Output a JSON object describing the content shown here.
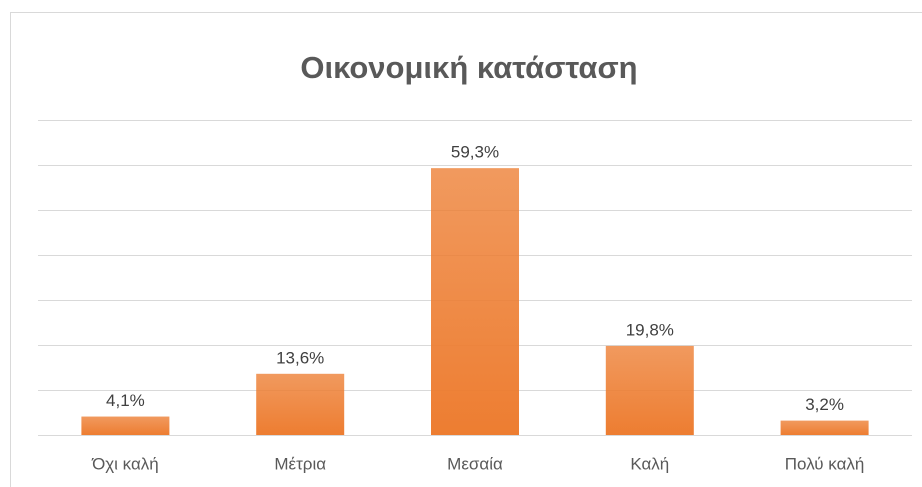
{
  "chart_data": {
    "type": "bar",
    "title": "Οικονομική κατάσταση",
    "categories": [
      "Όχι καλή",
      "Μέτρια",
      "Μεσαία",
      "Καλή",
      "Πολύ καλή"
    ],
    "values": [
      4.1,
      13.6,
      59.3,
      19.8,
      3.2
    ],
    "value_labels": [
      "4,1%",
      "13,6%",
      "59,3%",
      "19,8%",
      "3,2%"
    ],
    "color": "#ed7d31",
    "ylim": [
      0,
      70
    ],
    "yticks": [
      0,
      10,
      20,
      30,
      40,
      50,
      60,
      70
    ],
    "grid": true
  }
}
